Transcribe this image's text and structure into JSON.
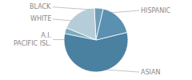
{
  "chart_data": {
    "type": "pie",
    "categories": [
      "BLACK",
      "WHITE",
      "A.I.\nPACIFIC ISL.",
      "ASIAN",
      "HISPANIC"
    ],
    "values": [
      4.5,
      18,
      3.0,
      57,
      17.5
    ],
    "colors": [
      "#6e9cb5",
      "#b5cdd9",
      "#7aacc0",
      "#4a80a0",
      "#5a90b0"
    ]
  }
}
